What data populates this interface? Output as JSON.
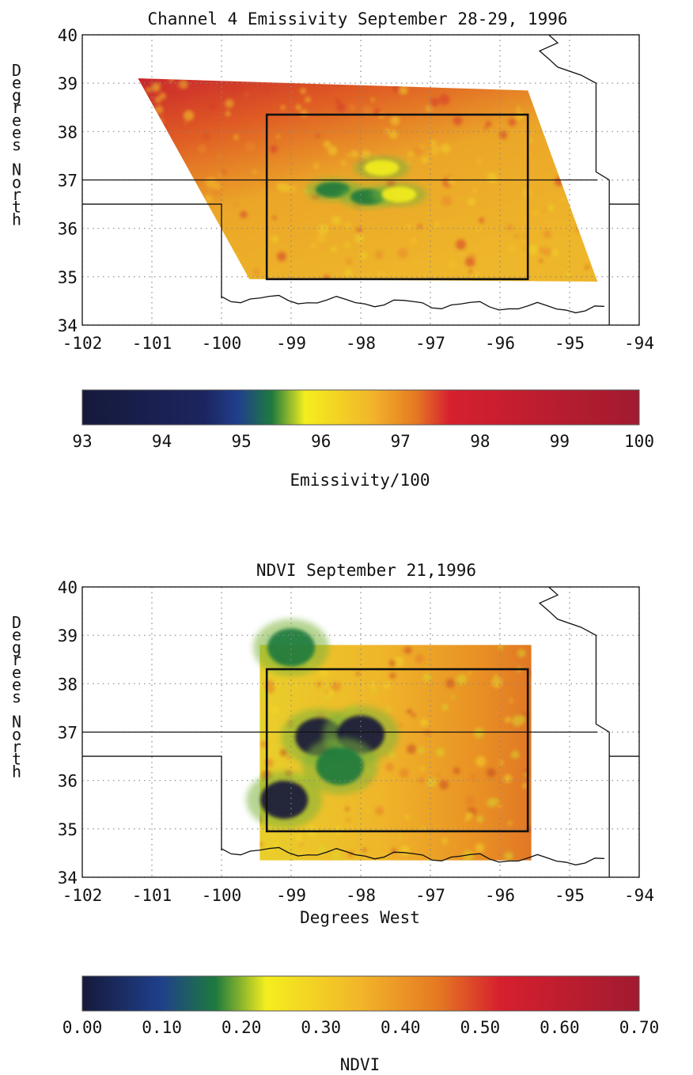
{
  "chart_data": [
    {
      "type": "heatmap",
      "title": "Channel 4 Emissivity September 28-29, 1996",
      "xlabel": "",
      "ylabel": "Degrees North",
      "xlim": [
        -102,
        -94
      ],
      "ylim": [
        34,
        40
      ],
      "x_ticks": [
        "-102",
        "-101",
        "-100",
        "-99",
        "-98",
        "-97",
        "-96",
        "-95",
        "-94"
      ],
      "y_ticks": [
        "34",
        "35",
        "36",
        "37",
        "38",
        "39",
        "40"
      ],
      "grid": true,
      "data_swath": {
        "lon_nw": -101.2,
        "lon_ne": -95.6,
        "lat_n": 39.1,
        "lon_sw": -99.6,
        "lon_se": -94.6,
        "lat_s": 34.9
      },
      "study_box": {
        "lon_min": -99.35,
        "lon_max": -95.6,
        "lat_min": 34.95,
        "lat_max": 38.35
      },
      "low_value_patches": [
        {
          "lon": -98.4,
          "lat": 36.8,
          "value": 94.5
        },
        {
          "lon": -97.9,
          "lat": 36.65,
          "value": 94.6
        },
        {
          "lon": -97.7,
          "lat": 37.25,
          "value": 95.0
        },
        {
          "lon": -97.45,
          "lat": 36.7,
          "value": 94.8
        }
      ],
      "colorbar": {
        "label": "Emissivity/100",
        "ticks": [
          "93",
          "94",
          "95",
          "96",
          "97",
          "98",
          "99",
          "100"
        ],
        "range": [
          93,
          100
        ]
      }
    },
    {
      "type": "heatmap",
      "title": "NDVI September 21,1996",
      "xlabel": "Degrees West",
      "ylabel": "Degrees North",
      "xlim": [
        -102,
        -94
      ],
      "ylim": [
        34,
        40
      ],
      "x_ticks": [
        "-102",
        "-101",
        "-100",
        "-99",
        "-98",
        "-97",
        "-96",
        "-95",
        "-94"
      ],
      "y_ticks": [
        "34",
        "35",
        "36",
        "37",
        "38",
        "39",
        "40"
      ],
      "grid": true,
      "data_swath": {
        "lon_min": -99.45,
        "lon_max": -95.55,
        "lat_min": 34.35,
        "lat_max": 38.8
      },
      "study_box": {
        "lon_min": -99.35,
        "lon_max": -95.6,
        "lat_min": 34.95,
        "lat_max": 38.3
      },
      "low_value_patches": [
        {
          "lon": -98.6,
          "lat": 36.9,
          "value": 0.05
        },
        {
          "lon": -98.0,
          "lat": 36.95,
          "value": 0.08
        },
        {
          "lon": -98.3,
          "lat": 36.3,
          "value": 0.1
        },
        {
          "lon": -99.1,
          "lat": 35.6,
          "value": 0.08
        },
        {
          "lon": -99.0,
          "lat": 38.75,
          "value": 0.15
        }
      ],
      "colorbar": {
        "label": "NDVI",
        "ticks": [
          "0.00",
          "0.10",
          "0.20",
          "0.30",
          "0.40",
          "0.50",
          "0.60",
          "0.70"
        ],
        "range": [
          0.0,
          0.7
        ]
      }
    }
  ],
  "colors": {
    "colormap": [
      "#16193a",
      "#1f3f8c",
      "#1e7a3e",
      "#f4ee1e",
      "#f2b52a",
      "#e57822",
      "#d6202e",
      "#a11a30"
    ],
    "axis": "#111111",
    "grid": "#888888"
  }
}
